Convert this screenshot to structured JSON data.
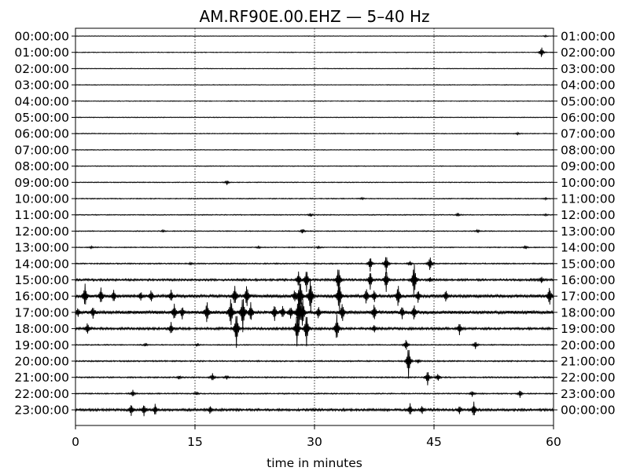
{
  "chart_data": {
    "type": "line",
    "title": "AM.RF90E.00.EHZ — 5–40 Hz",
    "xlabel": "time in minutes",
    "ylabel": "",
    "xlim": [
      0,
      60
    ],
    "x_ticks": [
      "0",
      "15",
      "30",
      "45",
      "60"
    ],
    "x_tick_values": [
      0,
      15,
      30,
      45,
      60
    ],
    "grid": "vertical dotted lines at 15, 30, 45",
    "trace_color": "#000000",
    "left_labels": [
      "00:00:00",
      "01:00:00",
      "02:00:00",
      "03:00:00",
      "04:00:00",
      "05:00:00",
      "06:00:00",
      "07:00:00",
      "08:00:00",
      "09:00:00",
      "10:00:00",
      "11:00:00",
      "12:00:00",
      "13:00:00",
      "14:00:00",
      "15:00:00",
      "16:00:00",
      "17:00:00",
      "18:00:00",
      "19:00:00",
      "20:00:00",
      "21:00:00",
      "22:00:00",
      "23:00:00"
    ],
    "right_labels": [
      "01:00:00",
      "02:00:00",
      "03:00:00",
      "04:00:00",
      "05:00:00",
      "06:00:00",
      "07:00:00",
      "08:00:00",
      "09:00:00",
      "10:00:00",
      "11:00:00",
      "12:00:00",
      "13:00:00",
      "14:00:00",
      "15:00:00",
      "16:00:00",
      "17:00:00",
      "18:00:00",
      "19:00:00",
      "20:00:00",
      "21:00:00",
      "22:00:00",
      "23:00:00",
      "00:00:00"
    ],
    "rows": [
      {
        "noise": 0.25,
        "events": [
          [
            59,
            0.4
          ]
        ]
      },
      {
        "noise": 0.25,
        "events": [
          [
            58.5,
            3
          ]
        ]
      },
      {
        "noise": 0.25,
        "events": []
      },
      {
        "noise": 0.25,
        "events": []
      },
      {
        "noise": 0.25,
        "events": []
      },
      {
        "noise": 0.3,
        "events": []
      },
      {
        "noise": 0.3,
        "events": [
          [
            55.5,
            0.5
          ]
        ]
      },
      {
        "noise": 0.3,
        "events": []
      },
      {
        "noise": 0.3,
        "events": []
      },
      {
        "noise": 0.3,
        "events": [
          [
            19,
            1.2
          ]
        ]
      },
      {
        "noise": 0.35,
        "events": [
          [
            36,
            0.4
          ],
          [
            59,
            0.4
          ]
        ]
      },
      {
        "noise": 0.35,
        "events": [
          [
            29.5,
            0.9
          ],
          [
            48,
            0.9
          ],
          [
            59,
            0.4
          ]
        ]
      },
      {
        "noise": 0.35,
        "events": [
          [
            11,
            0.5
          ],
          [
            28.5,
            1.2
          ],
          [
            50.5,
            0.8
          ]
        ]
      },
      {
        "noise": 0.35,
        "events": [
          [
            2,
            0.5
          ],
          [
            23,
            0.5
          ],
          [
            30.5,
            0.5
          ],
          [
            56.5,
            0.8
          ]
        ]
      },
      {
        "noise": 0.45,
        "events": [
          [
            14.5,
            0.6
          ],
          [
            37,
            4
          ],
          [
            39,
            5
          ],
          [
            44.5,
            4
          ],
          [
            42,
            1.2
          ]
        ]
      },
      {
        "noise": 0.8,
        "events": [
          [
            28,
            4
          ],
          [
            29,
            6
          ],
          [
            33,
            8
          ],
          [
            37,
            5
          ],
          [
            39,
            6
          ],
          [
            42.5,
            10
          ],
          [
            44.5,
            1.2
          ],
          [
            58.5,
            1.5
          ]
        ]
      },
      {
        "noise": 1.2,
        "events": [
          [
            1.2,
            6
          ],
          [
            3.2,
            4
          ],
          [
            4.8,
            3
          ],
          [
            8.2,
            2
          ],
          [
            9.5,
            3
          ],
          [
            12,
            3
          ],
          [
            20,
            5
          ],
          [
            21.5,
            6
          ],
          [
            27.5,
            3
          ],
          [
            28.2,
            10
          ],
          [
            29.5,
            10
          ],
          [
            33.1,
            9
          ],
          [
            36.5,
            4
          ],
          [
            37.5,
            3
          ],
          [
            40.5,
            6
          ],
          [
            43,
            3
          ],
          [
            46.5,
            3
          ],
          [
            59.5,
            5
          ]
        ]
      },
      {
        "noise": 1.3,
        "events": [
          [
            0.3,
            2
          ],
          [
            2.2,
            3
          ],
          [
            12.4,
            4
          ],
          [
            13.4,
            3
          ],
          [
            16.5,
            6
          ],
          [
            19.5,
            8
          ],
          [
            21,
            10
          ],
          [
            22,
            5
          ],
          [
            25,
            4
          ],
          [
            26,
            3
          ],
          [
            27,
            3
          ],
          [
            28,
            10
          ],
          [
            28.5,
            8
          ],
          [
            30.5,
            3
          ],
          [
            33.5,
            5
          ],
          [
            37.5,
            4
          ],
          [
            41,
            3
          ],
          [
            42.5,
            4
          ]
        ]
      },
      {
        "noise": 0.9,
        "events": [
          [
            1.5,
            3
          ],
          [
            12,
            3
          ],
          [
            20.2,
            10
          ],
          [
            27.8,
            9
          ],
          [
            29,
            9
          ],
          [
            32.8,
            7
          ],
          [
            37.5,
            2
          ],
          [
            48.2,
            3
          ]
        ]
      },
      {
        "noise": 0.4,
        "events": [
          [
            8.8,
            0.8
          ],
          [
            15.3,
            0.8
          ],
          [
            41.5,
            3
          ],
          [
            50.2,
            2
          ]
        ]
      },
      {
        "noise": 0.5,
        "events": [
          [
            41.8,
            9
          ],
          [
            43,
            1
          ]
        ]
      },
      {
        "noise": 0.5,
        "events": [
          [
            13,
            0.8
          ],
          [
            17.2,
            2
          ],
          [
            19,
            1
          ],
          [
            44.2,
            4
          ],
          [
            45.5,
            2
          ]
        ]
      },
      {
        "noise": 0.45,
        "events": [
          [
            7.2,
            1.8
          ],
          [
            15.2,
            0.8
          ],
          [
            49.8,
            1.5
          ],
          [
            55.8,
            2
          ]
        ]
      },
      {
        "noise": 0.9,
        "events": [
          [
            7,
            3
          ],
          [
            8.6,
            3
          ],
          [
            10,
            3
          ],
          [
            16.9,
            2
          ],
          [
            42,
            3
          ],
          [
            43.5,
            2
          ],
          [
            48.2,
            2
          ],
          [
            50,
            4
          ]
        ]
      }
    ]
  }
}
